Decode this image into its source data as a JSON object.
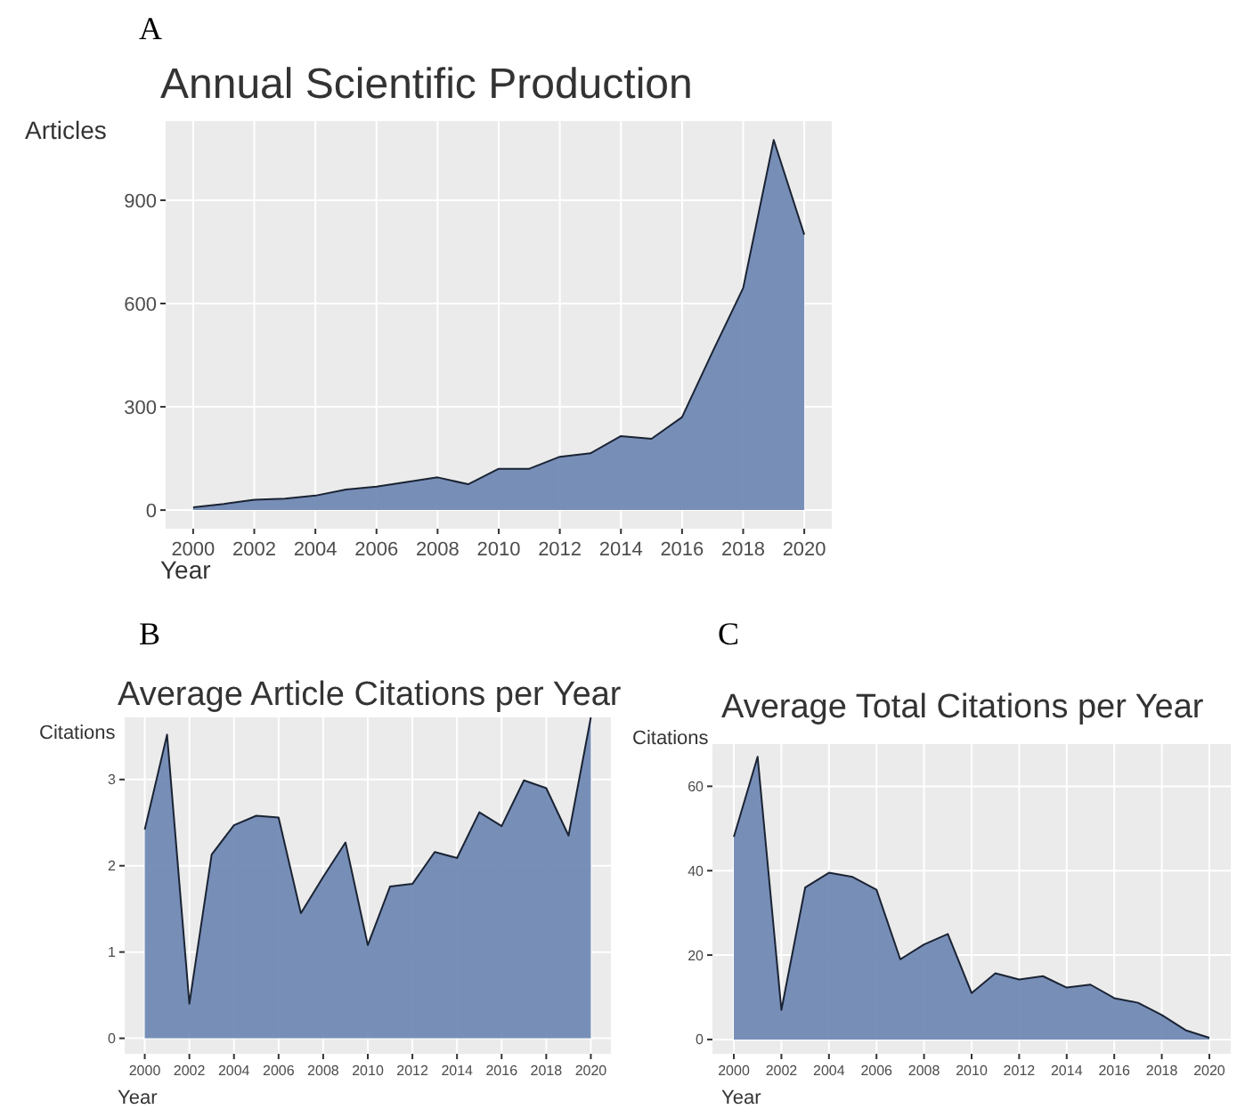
{
  "chart_data": [
    {
      "type": "area",
      "title": "Annual Scientific Production",
      "xlabel": "Year",
      "ylabel": "Articles",
      "annotations": [
        "A"
      ],
      "x": [
        2000,
        2001,
        2002,
        2003,
        2004,
        2005,
        2006,
        2007,
        2008,
        2009,
        2010,
        2011,
        2012,
        2013,
        2014,
        2015,
        2016,
        2017,
        2018,
        2019,
        2020
      ],
      "series": [
        {
          "color": "#7189b4",
          "values": [
            8,
            18,
            30,
            33,
            42,
            60,
            68,
            82,
            95,
            75,
            120,
            120,
            155,
            165,
            215,
            207,
            270,
            460,
            645,
            1075,
            800
          ]
        }
      ],
      "xlim": [
        1999.1,
        2020.9
      ],
      "xticks": [
        2000,
        2002,
        2004,
        2006,
        2008,
        2010,
        2012,
        2014,
        2016,
        2018,
        2020
      ],
      "ylim": [
        -54,
        1130
      ],
      "yticks": [
        0,
        300,
        600,
        900
      ],
      "grid": true
    },
    {
      "type": "area",
      "title": "Average Article Citations per Year",
      "xlabel": "Year",
      "ylabel": "Citations",
      "annotations": [
        "B"
      ],
      "x": [
        2000,
        2001,
        2002,
        2003,
        2004,
        2005,
        2006,
        2007,
        2008,
        2009,
        2010,
        2011,
        2012,
        2013,
        2014,
        2015,
        2016,
        2017,
        2018,
        2019,
        2020
      ],
      "series": [
        {
          "color": "#7189b4",
          "values": [
            2.42,
            3.52,
            0.4,
            2.13,
            2.47,
            2.58,
            2.56,
            1.45,
            1.87,
            2.27,
            1.08,
            1.76,
            1.79,
            2.16,
            2.09,
            2.62,
            2.46,
            2.99,
            2.9,
            2.35,
            3.72
          ]
        }
      ],
      "xlim": [
        1999.1,
        2020.9
      ],
      "xticks": [
        2000,
        2002,
        2004,
        2006,
        2008,
        2010,
        2012,
        2014,
        2016,
        2018,
        2020
      ],
      "ylim": [
        -0.18,
        3.72
      ],
      "yticks": [
        0,
        1,
        2,
        3
      ],
      "grid": true
    },
    {
      "type": "area",
      "title": "Average Total Citations per Year",
      "xlabel": "Year",
      "ylabel": "Citations",
      "annotations": [
        "C"
      ],
      "x": [
        2000,
        2001,
        2002,
        2003,
        2004,
        2005,
        2006,
        2007,
        2008,
        2009,
        2010,
        2011,
        2012,
        2013,
        2014,
        2015,
        2016,
        2017,
        2018,
        2019,
        2020
      ],
      "series": [
        {
          "color": "#7189b4",
          "values": [
            48,
            67,
            7,
            36,
            39.5,
            38.5,
            35.5,
            19,
            22.5,
            25,
            11,
            15.7,
            14.2,
            15,
            12.3,
            13,
            9.8,
            8.7,
            5.8,
            2.2,
            0.4
          ]
        }
      ],
      "xlim": [
        1999.1,
        2020.9
      ],
      "xticks": [
        2000,
        2002,
        2004,
        2006,
        2008,
        2010,
        2012,
        2014,
        2016,
        2018,
        2020
      ],
      "ylim": [
        -3.4,
        70
      ],
      "yticks": [
        0,
        20,
        40,
        60
      ],
      "grid": true
    }
  ]
}
